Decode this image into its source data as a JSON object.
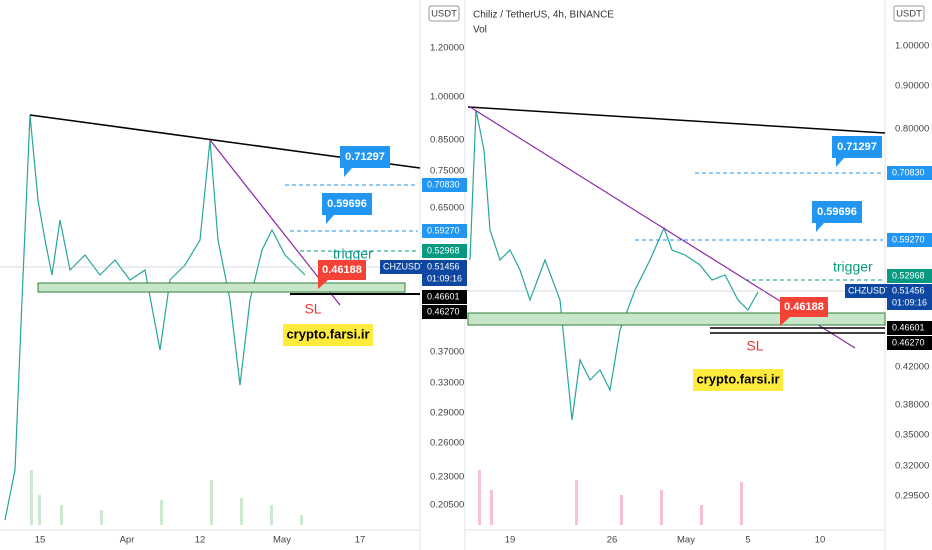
{
  "left": {
    "quote": "USDT",
    "price_ticks": [
      "1.20000",
      "1.00000",
      "0.85000",
      "0.75000",
      "0.65000",
      "0.37000",
      "0.33000",
      "0.29000",
      "0.26000",
      "0.23000",
      "0.20500"
    ],
    "badges": [
      "0.70830",
      "0.59270",
      "0.52968",
      "0.46601",
      "0.46270"
    ],
    "symbol": "CHZUSDT",
    "last_price": "0.51456",
    "countdown": "01:09:16",
    "time_ticks": [
      "15",
      "Apr",
      "12",
      "May",
      "17"
    ],
    "callouts": [
      "0.71297",
      "0.59696"
    ],
    "trigger": "trigger",
    "stop": "0.46188",
    "sl": "SL",
    "site": "crypto.farsi.ir"
  },
  "right": {
    "title": "Chiliz / TetherUS, 4h, BINANCE",
    "vol": "Vol",
    "quote": "USDT",
    "price_ticks": [
      "1.00000",
      "0.90000",
      "0.80000",
      "0.42000",
      "0.38000",
      "0.35000",
      "0.32000",
      "0.29500"
    ],
    "badges": [
      "0.70830",
      "0.59270",
      "0.52968",
      "0.46601",
      "0.46270"
    ],
    "symbol": "CHZUSDT",
    "last_price": "0.51456",
    "countdown": "01:09:16",
    "time_ticks": [
      "19",
      "26",
      "May",
      "5",
      "10"
    ],
    "callouts": [
      "0.71297",
      "0.59696"
    ],
    "trigger": "trigger",
    "stop": "0.46188",
    "sl": "SL",
    "site": "crypto.farsi.ir"
  }
}
